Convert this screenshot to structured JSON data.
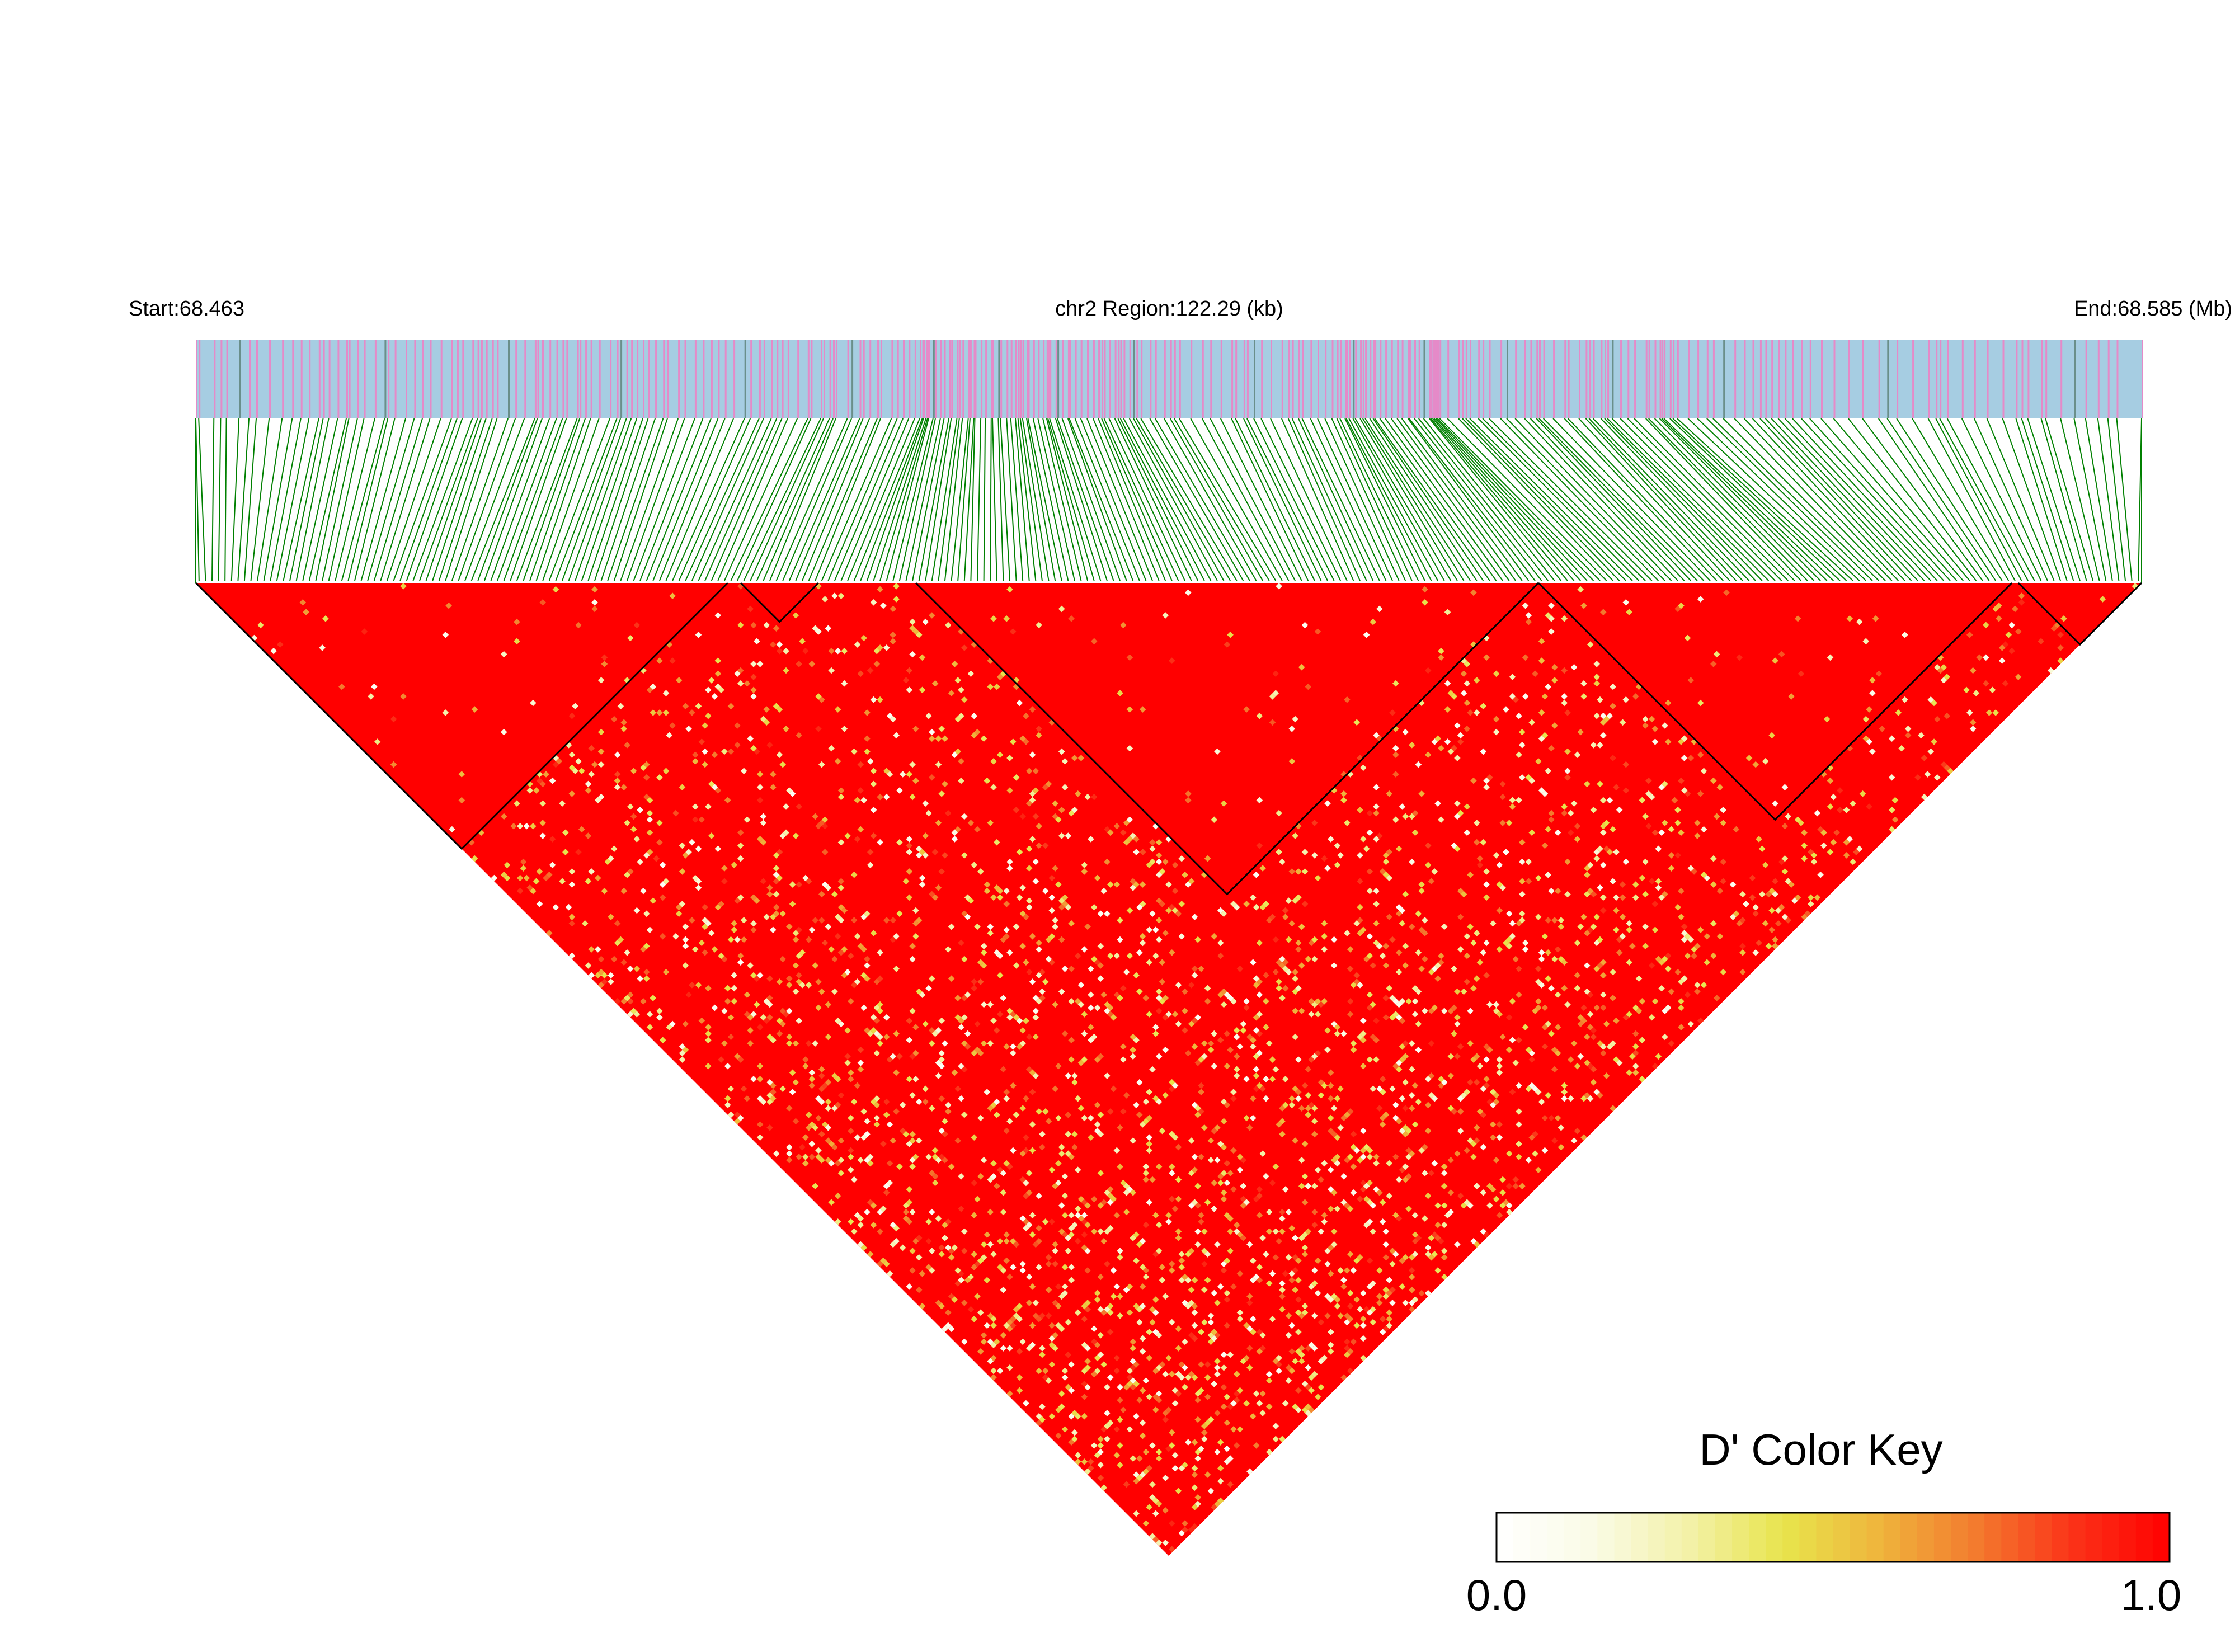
{
  "chart_data": {
    "type": "heatmap",
    "subtype": "LD triangle",
    "header": {
      "start_label": "Start:68.463",
      "region_label": "chr2 Region:122.29 (kb)",
      "end_label": "End:68.585 (Mb)"
    },
    "region": {
      "chromosome": "chr2",
      "start_mb": 68.463,
      "end_mb": 68.585,
      "length_kb": 122.29
    },
    "snp_count": 300,
    "blocks": [
      {
        "start_index": 0,
        "end_index": 82
      },
      {
        "start_index": 84,
        "end_index": 96
      },
      {
        "start_index": 111,
        "end_index": 207
      },
      {
        "start_index": 207,
        "end_index": 280
      },
      {
        "start_index": 281,
        "end_index": 300
      }
    ],
    "color_key": {
      "title": "D' Color Key",
      "min_label": "0.0",
      "max_label": "1.0",
      "min": 0.0,
      "max": 1.0,
      "colors": [
        "#ffffff",
        "#fafbe6",
        "#f3f1a8",
        "#e8e44c",
        "#efb43c",
        "#f37a2e",
        "#fb3218",
        "#ff0000"
      ]
    },
    "colors": {
      "track_background": "#a6cde2",
      "snp_marker": "#e58ac8",
      "connector": "#008000",
      "ld_high": "#ff0000",
      "block_outline": "#000000"
    }
  }
}
